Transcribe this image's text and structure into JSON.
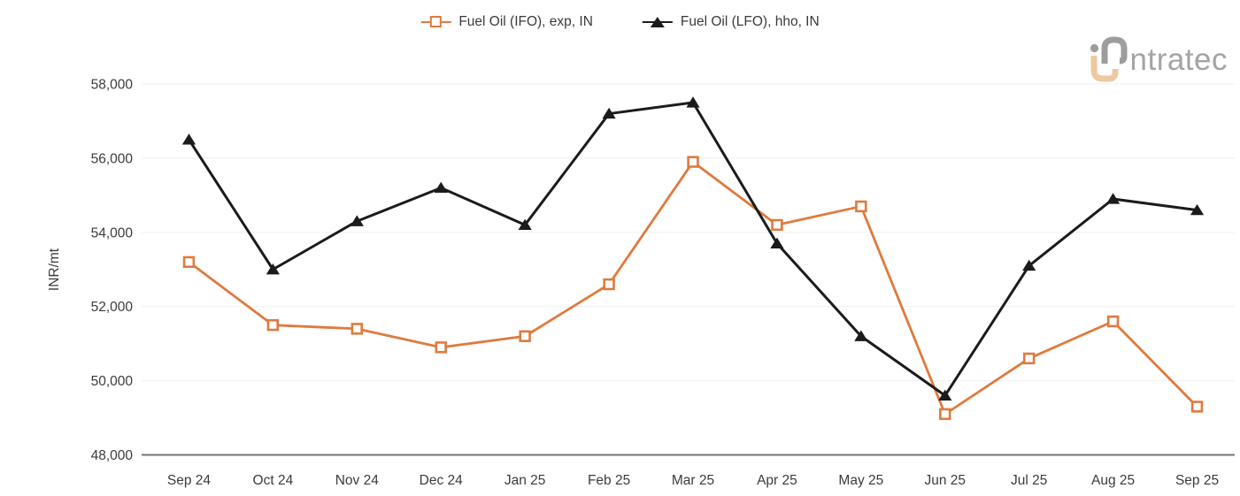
{
  "brand": {
    "logo_text": "ntratec"
  },
  "chart_data": {
    "type": "line",
    "title": "",
    "ylabel": "INR/mt",
    "xlabel": "",
    "x": [
      "Sep 24",
      "Oct 24",
      "Nov 24",
      "Dec 24",
      "Jan 25",
      "Feb 25",
      "Mar 25",
      "Apr 25",
      "May 25",
      "Jun 25",
      "Jul 25",
      "Aug 25",
      "Sep 25"
    ],
    "series": [
      {
        "name": "Fuel Oil (IFO), exp, IN",
        "color": "#DF7A3E",
        "marker": "hollow-square",
        "values": [
          53200,
          51500,
          51400,
          50900,
          51200,
          52600,
          55900,
          54200,
          54700,
          49100,
          50600,
          51600,
          49300
        ]
      },
      {
        "name": "Fuel Oil (LFO), hho, IN",
        "color": "#1b1b1b",
        "marker": "filled-triangle",
        "values": [
          56500,
          53000,
          54300,
          55200,
          54200,
          57200,
          57500,
          53700,
          51200,
          49600,
          53100,
          54900,
          54600
        ]
      }
    ],
    "ylim": [
      48000,
      58000
    ],
    "ytick_step": 2000,
    "ytick_labels": [
      "48,000",
      "50,000",
      "52,000",
      "54,000",
      "56,000",
      "58,000"
    ],
    "grid": "horizontal-light",
    "legend_position": "top-center",
    "colors": {
      "gridline": "#efefef",
      "axis_line": "#757575",
      "tick_text": "#3b3b3b",
      "background": "#ffffff",
      "logo_gray": "#9d9d9d",
      "logo_tan": "#ecc9a0"
    }
  }
}
